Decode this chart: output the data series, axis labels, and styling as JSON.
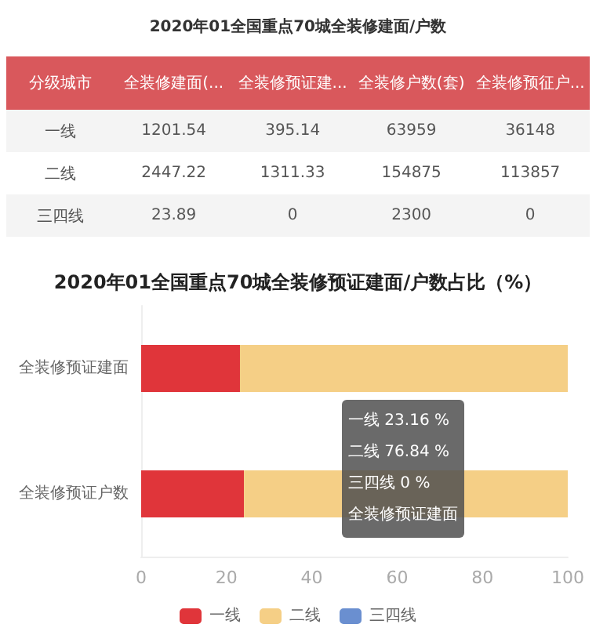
{
  "chart_data": [
    {
      "type": "other",
      "title": "2020年01全国重点70城全装修建面/户数",
      "ylabel": "分级城市",
      "categories": [
        "全装修建面(...",
        "全装修预证建...",
        "全装修户数(套)",
        "全装修预征户..."
      ],
      "y_categories": [
        "一线",
        "二线",
        "三四线"
      ],
      "annotations": [
        "1201.54",
        "395.14",
        "63959",
        "36148",
        "2447.22",
        "1311.33",
        "154875",
        "113857",
        "23.89",
        "0",
        "2300",
        "0"
      ],
      "color": "#d9585c"
    },
    {
      "type": "bar",
      "orientation": "horizontal",
      "stacked": true,
      "title": "2020年01全国重点70城全装修预证建面/户数占比（%）",
      "categories": [
        "全装修预证建面",
        "全装修预证户数"
      ],
      "series": [
        {
          "name": "一线",
          "color": "#e0353a",
          "values": [
            23.16,
            24.1
          ]
        },
        {
          "name": "二线",
          "color": "#f5cf86",
          "values": [
            76.84,
            75.9
          ]
        },
        {
          "name": "三四线",
          "color": "#6a8fd0",
          "values": [
            0,
            0
          ]
        }
      ],
      "xlim": [
        0,
        100
      ],
      "xticks": [
        0,
        20,
        40,
        60,
        80,
        100
      ],
      "legend": "bottom",
      "annotations": [
        "一线 23.16 %",
        "二线 76.84 %",
        "三四线 0 %",
        "全装修预证建面"
      ]
    }
  ]
}
